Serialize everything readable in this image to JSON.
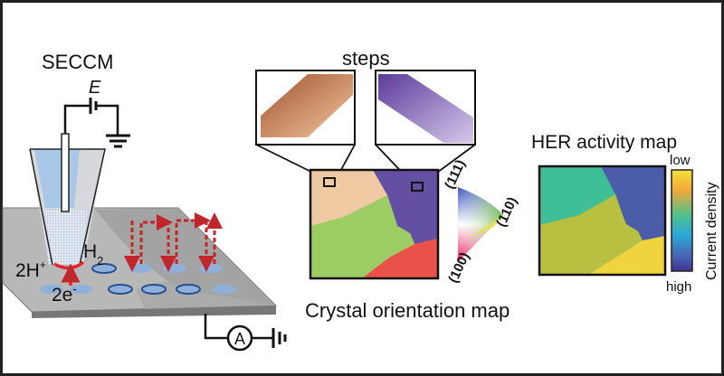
{
  "left_panel": {
    "title": "SECCM",
    "potential_label": "E",
    "proton_label": "2H",
    "proton_charge": "+",
    "hydrogen_label": "H",
    "hydrogen_subscript": "2",
    "electron_label": "2e",
    "electron_charge": "-",
    "ammeter_label": "A"
  },
  "middle_panel": {
    "steps_label": "steps",
    "map_title": "Crystal orientation map",
    "orientation_labels": [
      "(111)",
      "(110)",
      "(100)"
    ],
    "colors": {
      "peach": "#eec9a1",
      "purple": "#6350a3",
      "green": "#9ccc63",
      "red": "#ea5148"
    }
  },
  "right_panel": {
    "title": "HER activity map",
    "colorbar_label": "Current density",
    "colorbar_low": "low",
    "colorbar_high": "high",
    "colors": {
      "teal": "#3fbf98",
      "blue": "#4b5ca8",
      "olive": "#b8bf41",
      "yellow": "#efd33f"
    }
  }
}
